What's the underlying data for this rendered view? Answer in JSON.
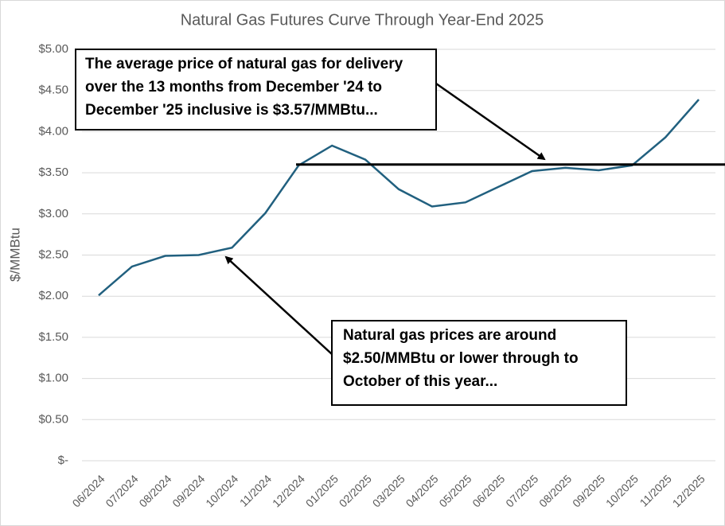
{
  "chart_data": {
    "type": "line",
    "title": "Natural Gas Futures Curve Through Year-End 2025",
    "y_label": "$/MMBtu",
    "categories": [
      "06/2024",
      "07/2024",
      "08/2024",
      "09/2024",
      "10/2024",
      "11/2024",
      "12/2024",
      "01/2025",
      "02/2025",
      "03/2025",
      "04/2025",
      "05/2025",
      "06/2025",
      "07/2025",
      "08/2025",
      "09/2025",
      "10/2025",
      "11/2025",
      "12/2025"
    ],
    "series": [
      {
        "name": "Futures price",
        "color": "#21607f",
        "values": [
          2.01,
          2.36,
          2.49,
          2.5,
          2.59,
          3.01,
          3.59,
          3.83,
          3.66,
          3.3,
          3.09,
          3.14,
          3.33,
          3.52,
          3.56,
          3.53,
          3.59,
          3.93,
          4.39
        ]
      }
    ],
    "ylim": [
      0,
      5
    ],
    "yticks": [
      {
        "value": 0,
        "label": "$-"
      },
      {
        "value": 0.5,
        "label": "$0.50"
      },
      {
        "value": 1,
        "label": "$1.00"
      },
      {
        "value": 1.5,
        "label": "$1.50"
      },
      {
        "value": 2,
        "label": "$2.00"
      },
      {
        "value": 2.5,
        "label": "$2.50"
      },
      {
        "value": 3,
        "label": "$3.00"
      },
      {
        "value": 3.5,
        "label": "$3.50"
      },
      {
        "value": 4,
        "label": "$4.00"
      },
      {
        "value": 4.5,
        "label": "$4.50"
      },
      {
        "value": 5,
        "label": "$5.00"
      }
    ],
    "grid": true,
    "reference_line": {
      "value": 3.6,
      "color": "#000000"
    },
    "annotations": [
      {
        "lines": [
          "The average price of natural gas for delivery",
          "over the 13 months from December  '24 to",
          "December '25 inclusive is $3.57/MMBtu..."
        ]
      },
      {
        "lines": [
          "Natural gas prices are around",
          "$2.50/MMBtu or lower through to",
          "October of this year..."
        ]
      }
    ]
  }
}
